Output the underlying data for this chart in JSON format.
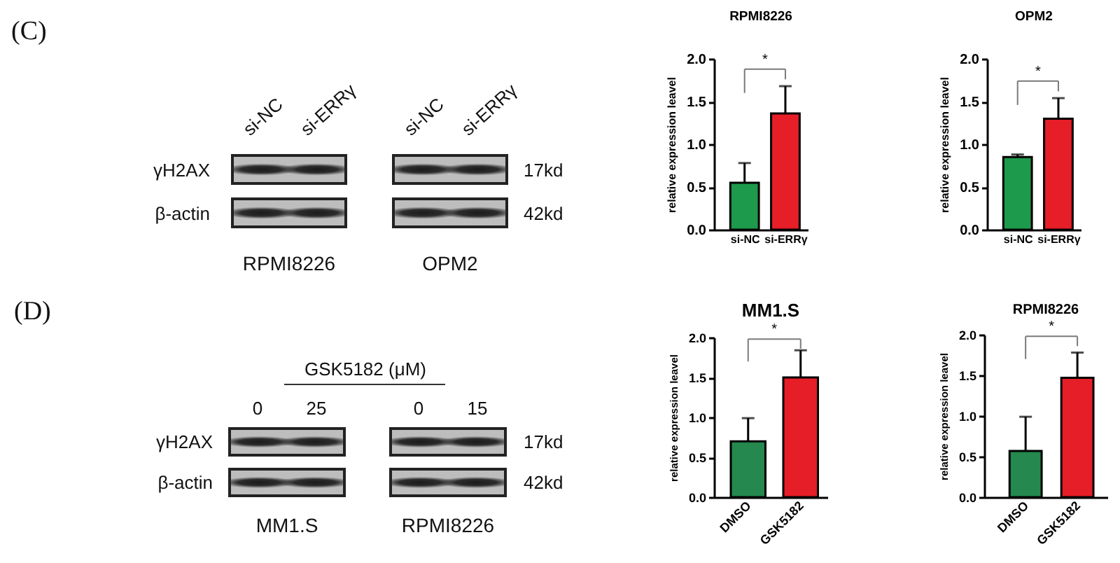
{
  "chart_data": [
    {
      "type": "other",
      "title": "(C)",
      "categories": [
        "si-NC",
        "si-ERRγ",
        "si-NC",
        "si-ERRγ"
      ],
      "y_categories": [
        "γH2AX",
        "β-actin"
      ],
      "y2_categories": [
        "17kd",
        "42kd"
      ],
      "annotations": [
        "RPMI8226",
        "OPM2"
      ]
    },
    {
      "type": "bar",
      "title": "RPMI8226",
      "ylabel": "relative expression leavel",
      "categories": [
        "si-NC",
        "si-ERRγ"
      ],
      "values": [
        0.55,
        1.36
      ],
      "colors": [
        "#1d9a4b",
        "#e61e27"
      ],
      "errors": [
        [
          0.55,
          0.78
        ],
        [
          1.36,
          1.68
        ]
      ],
      "ylim": [
        0,
        2
      ],
      "yticks": [
        {
          "value": 0,
          "label": "0.0"
        },
        {
          "value": 0.5,
          "label": "0.5"
        },
        {
          "value": 1,
          "label": "1.0"
        },
        {
          "value": 1.5,
          "label": "1.5"
        },
        {
          "value": 2,
          "label": "2.0"
        }
      ],
      "annotations": [
        "*"
      ]
    },
    {
      "type": "bar",
      "title": "OPM2",
      "ylabel": "relative expression leavel",
      "categories": [
        "si-NC",
        "si-ERRγ"
      ],
      "values": [
        0.85,
        1.3
      ],
      "colors": [
        "#1d9a4b",
        "#e61e27"
      ],
      "errors": [
        [
          0.85,
          0.88
        ],
        [
          1.3,
          1.54
        ]
      ],
      "ylim": [
        0,
        2
      ],
      "yticks": [
        {
          "value": 0,
          "label": "0.0"
        },
        {
          "value": 0.5,
          "label": "0.5"
        },
        {
          "value": 1,
          "label": "1.0"
        },
        {
          "value": 1.5,
          "label": "1.5"
        },
        {
          "value": 2,
          "label": "2.0"
        }
      ],
      "annotations": [
        "*"
      ]
    },
    {
      "type": "other",
      "title": "(D)",
      "xlabel": "GSK5182 (μM)",
      "categories": [
        "0",
        "25",
        "0",
        "15"
      ],
      "y_categories": [
        "γH2AX",
        "β-actin"
      ],
      "y2_categories": [
        "17kd",
        "42kd"
      ],
      "annotations": [
        "MM1.S",
        "RPMI8226"
      ]
    },
    {
      "type": "bar",
      "title": "MM1.S",
      "ylabel": "relative expression leavel",
      "categories": [
        "DMSO",
        "GSK5182"
      ],
      "values": [
        0.7,
        1.5
      ],
      "colors": [
        "#24884f",
        "#e61e27"
      ],
      "errors": [
        [
          0.7,
          0.99
        ],
        [
          1.5,
          1.84
        ]
      ],
      "ylim": [
        0,
        2
      ],
      "yticks": [
        {
          "value": 0,
          "label": "0.0"
        },
        {
          "value": 0.5,
          "label": "0.5"
        },
        {
          "value": 1,
          "label": "1.0"
        },
        {
          "value": 1.5,
          "label": "1.5"
        },
        {
          "value": 2,
          "label": "2.0"
        }
      ],
      "annotations": [
        "*"
      ]
    },
    {
      "type": "bar",
      "title": "RPMI8226",
      "ylabel": "relative expression leavel",
      "categories": [
        "DMSO",
        "GSK5182"
      ],
      "values": [
        0.57,
        1.47
      ],
      "colors": [
        "#24884f",
        "#e61e27"
      ],
      "errors": [
        [
          0.57,
          0.99
        ],
        [
          1.47,
          1.78
        ]
      ],
      "ylim": [
        0,
        2
      ],
      "yticks": [
        {
          "value": 0,
          "label": "0.0"
        },
        {
          "value": 0.5,
          "label": "0.5"
        },
        {
          "value": 1,
          "label": "1.0"
        },
        {
          "value": 1.5,
          "label": "1.5"
        },
        {
          "value": 2,
          "label": "2.0"
        }
      ],
      "annotations": [
        "*"
      ]
    }
  ]
}
